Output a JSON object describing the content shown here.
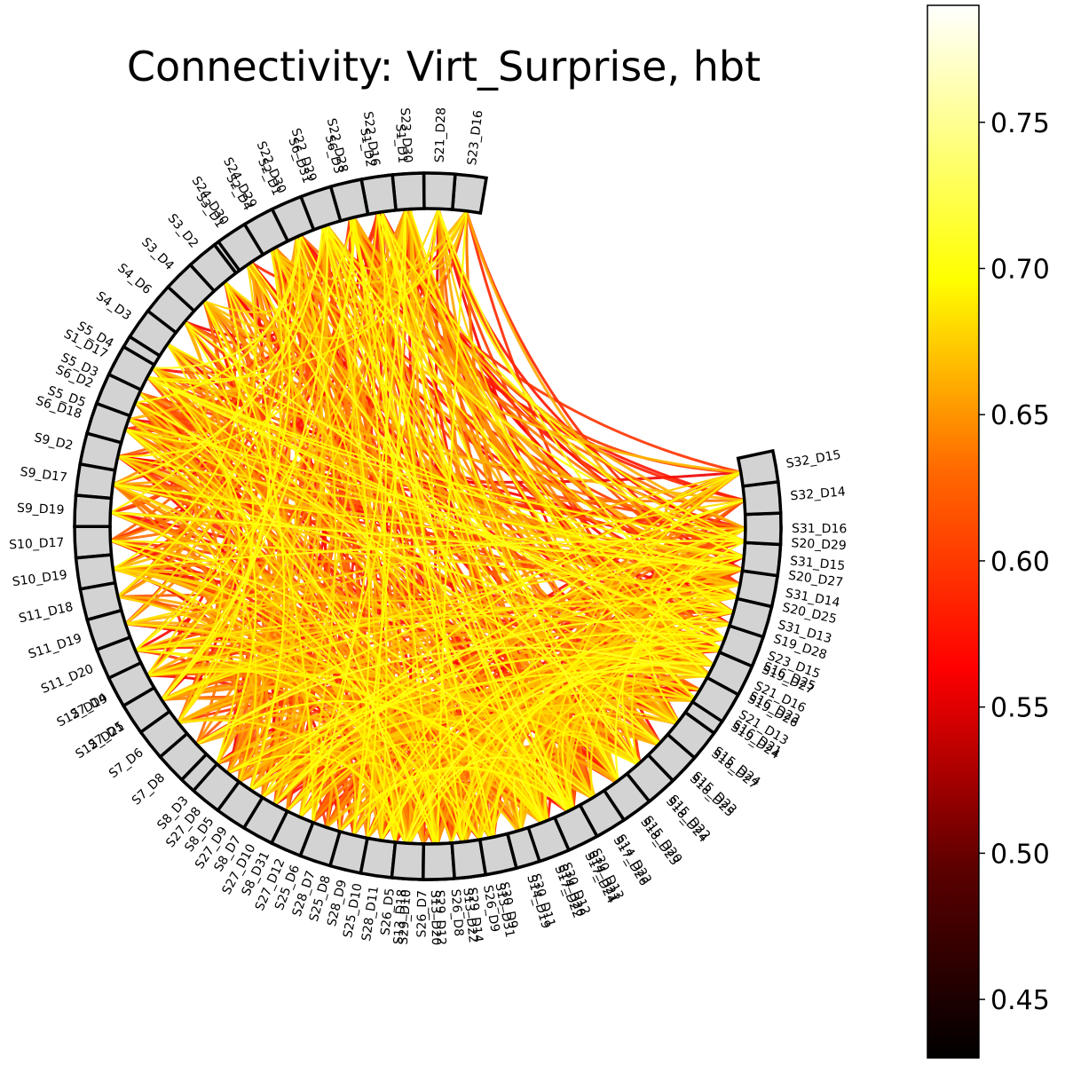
{
  "title": "Connectivity: Virt_Surprise, hbt",
  "colormap": "hot",
  "colors": {
    "node_fill": "#d3d3d3",
    "node_stroke": "#000000",
    "background": "#ffffff"
  },
  "colorbar": {
    "range": [
      0.43,
      0.79
    ],
    "ticks": [
      "0.45",
      "0.50",
      "0.55",
      "0.60",
      "0.65",
      "0.70",
      "0.75"
    ]
  },
  "groups": [
    {
      "name": "group-top-left",
      "labels": [
        "S1_D1",
        "S1_D2",
        "S6_D3",
        "S6_D31",
        "S2_D1",
        "S2_D4",
        "S3_D1",
        "S3_D2",
        "S3_D4",
        "S4_D6",
        "S4_D3",
        "S5_D4",
        "S5_D3",
        "S5_D5"
      ]
    },
    {
      "name": "group-left-upper",
      "labels": [
        "S1_D17",
        "S6_D2",
        "S6_D18",
        "S9_D2",
        "S9_D17",
        "S9_D19",
        "S10_D17",
        "S10_D19",
        "S11_D18",
        "S11_D19",
        "S11_D20",
        "S12_D19",
        "S12_D21"
      ]
    },
    {
      "name": "group-left-lower",
      "labels": [
        "S7_D4",
        "S7_D5",
        "S7_D6",
        "S7_D8",
        "S8_D3",
        "S8_D5",
        "S8_D7",
        "S8_D31",
        "S25_D6",
        "S25_D8",
        "S25_D10",
        "S26_D5",
        "S26_D7",
        "S26_D8",
        "S26_D9"
      ]
    },
    {
      "name": "group-bottom",
      "labels": [
        "S13_D18",
        "S13_D20",
        "S13_D22",
        "S13_D31",
        "S14_D19",
        "S14_D20",
        "S14_D21",
        "S14_D23",
        "S15_D20",
        "S15_D22",
        "S15_D23",
        "S15_D24",
        "S16_D21",
        "S16_D23",
        "S16_D25"
      ]
    },
    {
      "name": "group-bottom-right",
      "labels": [
        "S27_D8",
        "S27_D9",
        "S27_D10",
        "S27_D12",
        "S28_D7",
        "S28_D9",
        "S28_D11",
        "S29_D10",
        "S29_D12",
        "S29_D14",
        "S30_D9",
        "S30_D11",
        "S30_D12",
        "S30_D13"
      ]
    },
    {
      "name": "group-right",
      "labels": [
        "S17_D22",
        "S17_D24",
        "S17_D26",
        "S18_D23",
        "S18_D24",
        "S18_D25",
        "S18_D27",
        "S19_D24",
        "S19_D26",
        "S19_D27",
        "S19_D28",
        "S20_D25",
        "S20_D27",
        "S20_D29"
      ]
    },
    {
      "name": "group-right-upper",
      "labels": [
        "S21_D13",
        "S21_D16",
        "S23_D15",
        "S31_D13",
        "S31_D14",
        "S31_D15",
        "S31_D16",
        "S32_D14",
        "S32_D15"
      ]
    },
    {
      "name": "group-top",
      "labels": [
        "S23_D16",
        "S21_D28",
        "S23_D30",
        "S22_D16",
        "S22_D28",
        "S22_D29",
        "S22_D30",
        "S24_D29",
        "S24_D30"
      ]
    }
  ]
}
